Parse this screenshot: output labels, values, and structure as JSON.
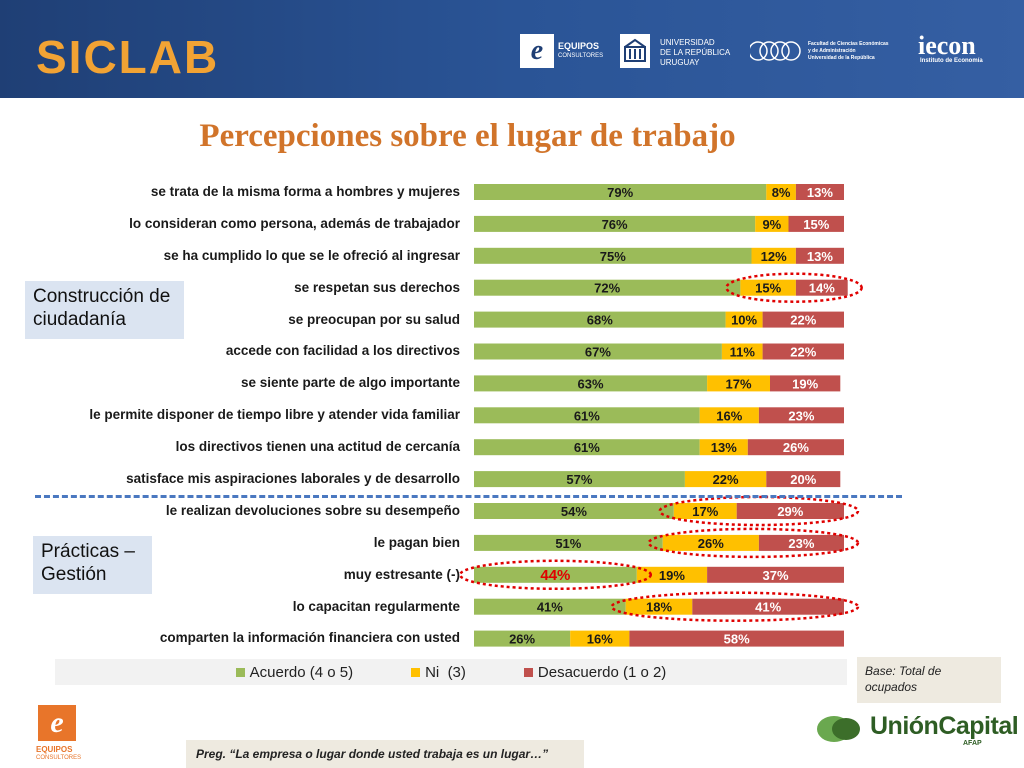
{
  "header": {
    "brand": "SICLAB",
    "logos": {
      "equipos": "EQUIPOS",
      "equipos_sub": "CONSULTORES",
      "udelar_lines": [
        "UNIVERSIDAD",
        "DE LA REPÚBLICA",
        "URUGUAY"
      ],
      "fcea_lines": [
        "Facultad de Ciencias Económicas",
        "y de Administración",
        "Universidad de la República"
      ],
      "iecon": "iecon",
      "iecon_sub": "Instituto de Economía"
    }
  },
  "title": "Percepciones sobre el lugar de trabajo",
  "groups": {
    "top": "Construcción de ciudadanía",
    "bottom": "Prácticas – Gestión"
  },
  "colors": {
    "acuerdo": "#9bbb59",
    "ni": "#ffc000",
    "desacuerdo": "#c0504d",
    "highlight": "#e00000"
  },
  "chart_data": {
    "type": "bar",
    "orientation": "horizontal",
    "stacked": true,
    "percent_stacked": true,
    "categories": [
      "se trata de la misma forma a hombres y mujeres",
      "lo consideran como persona, además de trabajador",
      "se ha cumplido lo que se le ofreció al ingresar",
      "se respetan sus derechos",
      "se preocupan por su salud",
      "accede con facilidad a los directivos",
      "se siente parte de algo importante",
      "le permite disponer de tiempo libre y atender vida familiar",
      "los directivos tienen una actitud de cercanía",
      "satisface mis aspiraciones laborales y de desarrollo",
      "le realizan devoluciones sobre su desempeño",
      "le pagan bien",
      "muy estresante (-)",
      "lo capacitan regularmente",
      "comparten la información financiera con usted"
    ],
    "series": [
      {
        "name": "Acuerdo (4 o 5)",
        "values": [
          79,
          76,
          75,
          72,
          68,
          67,
          63,
          61,
          61,
          57,
          54,
          51,
          44,
          41,
          26
        ]
      },
      {
        "name": "Ni  (3)",
        "values": [
          8,
          9,
          12,
          15,
          10,
          11,
          17,
          16,
          13,
          22,
          17,
          26,
          19,
          18,
          16
        ]
      },
      {
        "name": "Desacuerdo (1 o 2)",
        "values": [
          13,
          15,
          13,
          14,
          22,
          22,
          19,
          23,
          26,
          20,
          29,
          23,
          37,
          41,
          58
        ]
      }
    ],
    "data_labels": true,
    "legend": "bottom",
    "highlights": [
      {
        "category": 3,
        "series": [
          1,
          2
        ]
      },
      {
        "category": 10,
        "series": [
          1,
          2
        ]
      },
      {
        "category": 11,
        "series": [
          1,
          2
        ]
      },
      {
        "category": 12,
        "series": [
          0
        ]
      },
      {
        "category": 13,
        "series": [
          1,
          2
        ]
      }
    ]
  },
  "legend_labels": [
    "Acuerdo (4 o 5)",
    "Ni  (3)",
    "Desacuerdo (1 o 2)"
  ],
  "base_note": "Base: Total de ocupados",
  "question_note": "Preg. “La empresa o lugar donde usted trabaja es un lugar…”",
  "footer": {
    "equipos": "EQUIPOS",
    "equipos_sub": "CONSULTORES",
    "unioncapital": "UniónCapital",
    "unioncapital_sub": "AFAP"
  }
}
